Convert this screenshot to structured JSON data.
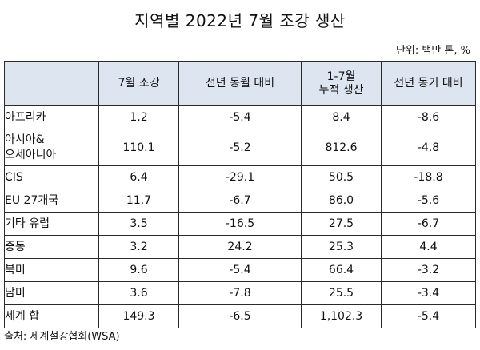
{
  "title": "지역별 2022년 7월 조강 생산",
  "unit": "단위: 백만 톤, %",
  "headers": [
    "",
    "7월 조강",
    "전년 동월 대비",
    "1-7월\n누적 생산",
    "전년 동기 대비"
  ],
  "rows": [
    {
      "region": "아프리카",
      "jul": "1.2",
      "yoy_month": "-5.4",
      "ytd": "8.4",
      "yoy_ytd": "-8.6"
    },
    {
      "region": "아시아&\n오세아니아",
      "jul": "110.1",
      "yoy_month": "-5.2",
      "ytd": "812.6",
      "yoy_ytd": "-4.8"
    },
    {
      "region": "CIS",
      "jul": "6.4",
      "yoy_month": "-29.1",
      "ytd": "50.5",
      "yoy_ytd": "-18.8"
    },
    {
      "region": "EU 27개국",
      "jul": "11.7",
      "yoy_month": "-6.7",
      "ytd": "86.0",
      "yoy_ytd": "-5.6"
    },
    {
      "region": "기타 유럽",
      "jul": "3.5",
      "yoy_month": "-16.5",
      "ytd": "27.5",
      "yoy_ytd": "-6.7"
    },
    {
      "region": "중동",
      "jul": "3.2",
      "yoy_month": "24.2",
      "ytd": "25.3",
      "yoy_ytd": "4.4"
    },
    {
      "region": "북미",
      "jul": "9.6",
      "yoy_month": "-5.4",
      "ytd": "66.4",
      "yoy_ytd": "-3.2"
    },
    {
      "region": "남미",
      "jul": "3.6",
      "yoy_month": "-7.8",
      "ytd": "25.5",
      "yoy_ytd": "-3.4"
    },
    {
      "region": "세계 합",
      "jul": "149.3",
      "yoy_month": "-6.5",
      "ytd": "1,102.3",
      "yoy_ytd": "-5.4"
    }
  ],
  "source": "출처: 세계철강협회(WSA)",
  "colors": {
    "header_bg": "#dde5f0",
    "border": "#2a2a2a"
  }
}
